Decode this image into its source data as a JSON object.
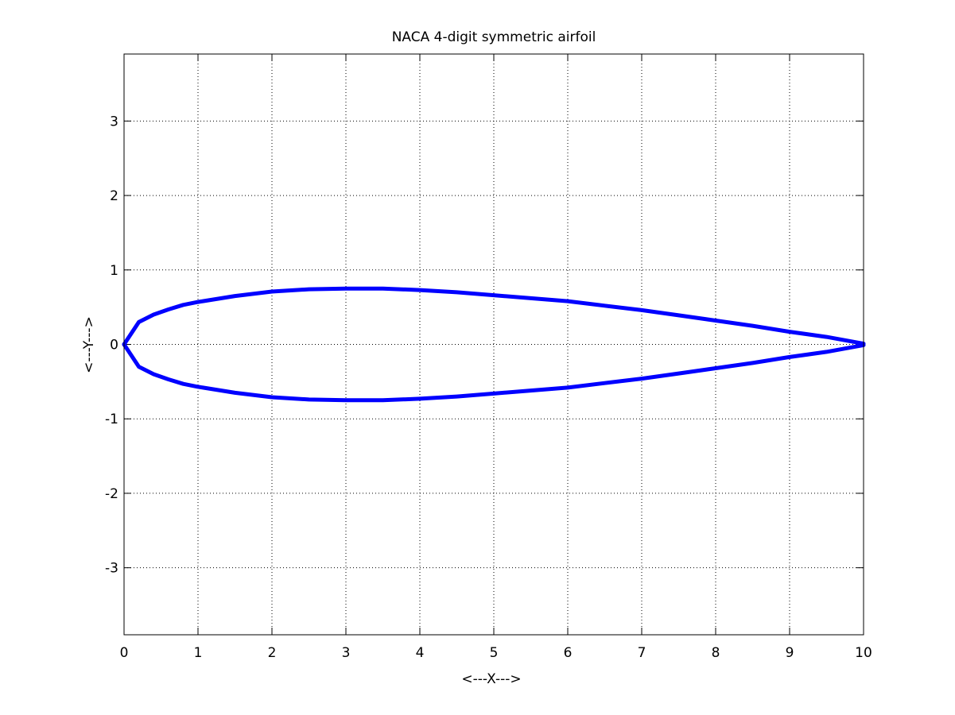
{
  "chart_data": {
    "type": "line",
    "title": "NACA 4-digit symmetric airfoil",
    "xlabel": "<---X--->",
    "ylabel": "<---Y--->",
    "xlim": [
      0,
      10
    ],
    "ylim": [
      -3.9,
      3.9
    ],
    "xticks": [
      0,
      1,
      2,
      3,
      4,
      5,
      6,
      7,
      8,
      9,
      10
    ],
    "yticks": [
      -3,
      -2,
      -1,
      0,
      1,
      2,
      3
    ],
    "grid": true,
    "line_color": "#0000ff",
    "series": [
      {
        "x": [
          0,
          0.2,
          0.4,
          0.6,
          0.8,
          1,
          1.5,
          2,
          2.5,
          3,
          3.5,
          4,
          4.5,
          5,
          5.5,
          6,
          6.5,
          7,
          7.5,
          8,
          8.5,
          9,
          9.5,
          10
        ],
        "y": [
          0,
          0.3,
          0.4,
          0.47,
          0.53,
          0.57,
          0.65,
          0.71,
          0.74,
          0.75,
          0.75,
          0.73,
          0.7,
          0.66,
          0.62,
          0.58,
          0.52,
          0.46,
          0.39,
          0.32,
          0.25,
          0.17,
          0.1,
          0.01
        ]
      },
      {
        "x": [
          0,
          0.2,
          0.4,
          0.6,
          0.8,
          1,
          1.5,
          2,
          2.5,
          3,
          3.5,
          4,
          4.5,
          5,
          5.5,
          6,
          6.5,
          7,
          7.5,
          8,
          8.5,
          9,
          9.5,
          10
        ],
        "y": [
          0,
          -0.3,
          -0.4,
          -0.47,
          -0.53,
          -0.57,
          -0.65,
          -0.71,
          -0.74,
          -0.75,
          -0.75,
          -0.73,
          -0.7,
          -0.66,
          -0.62,
          -0.58,
          -0.52,
          -0.46,
          -0.39,
          -0.32,
          -0.25,
          -0.17,
          -0.1,
          -0.01
        ]
      }
    ]
  }
}
